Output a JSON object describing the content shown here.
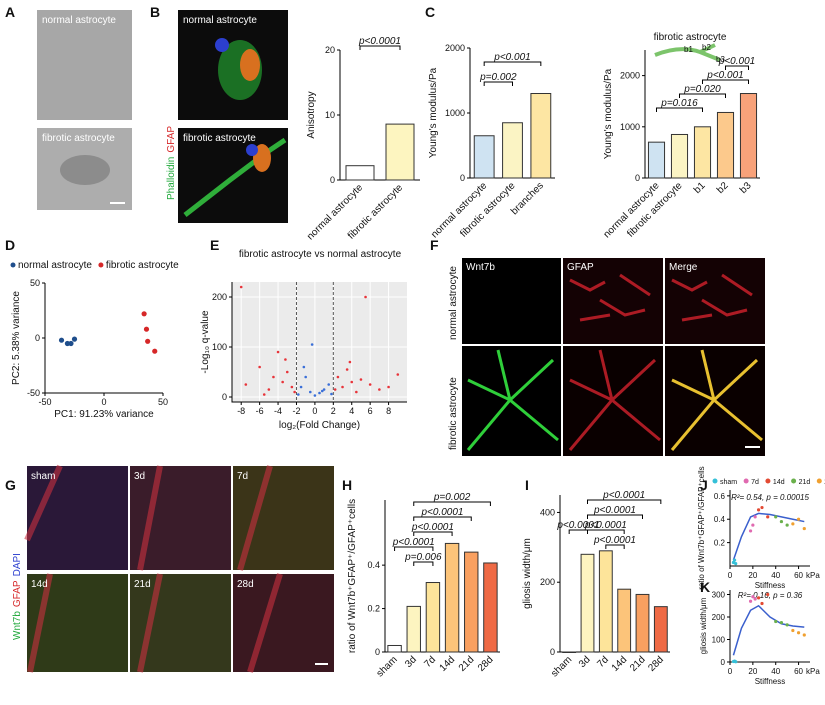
{
  "panel_letters": [
    "A",
    "B",
    "C",
    "D",
    "E",
    "F",
    "G",
    "H",
    "I",
    "J",
    "K"
  ],
  "images": {
    "A": [
      "normal astrocyte",
      "fibrotic astrocyte"
    ],
    "B": {
      "labels": [
        "normal astrocyte",
        "fibrotic astrocyte"
      ],
      "stain": [
        "Phalloidin",
        "GFAP"
      ]
    },
    "F": {
      "columns": [
        "Wnt7b",
        "GFAP",
        "Merge"
      ],
      "rows": [
        "normal astrocyte",
        "fibrotic astrocyte"
      ]
    },
    "G": {
      "labels": [
        "sham",
        "3d",
        "7d",
        "14d",
        "21d",
        "28d"
      ],
      "stain": [
        "Wnt7b",
        "GFAP",
        "DAPI"
      ]
    }
  },
  "chart_data": [
    {
      "type": "bar",
      "ylabel": "Anisotropy",
      "categories": [
        "normal astrocyte",
        "fibrotic astrocyte"
      ],
      "values": [
        2.2,
        8.6
      ],
      "colors": [
        "#ffffff",
        "#fdf5c0"
      ],
      "ylim": [
        0,
        20
      ],
      "yticks": [
        0,
        10,
        20
      ],
      "annotations": [
        "p<0.0001"
      ]
    },
    {
      "type": "bar",
      "ylabel": "Young's modulus/Pa",
      "categories": [
        "normal astrocyte",
        "fibrotic astrocyte",
        "branches"
      ],
      "values": [
        650,
        850,
        1300
      ],
      "colors": [
        "#cfe3f2",
        "#fbf4c4",
        "#fde6a3"
      ],
      "ylim": [
        0,
        2000
      ],
      "yticks": [
        0,
        1000,
        2000
      ],
      "annotations": [
        "p=0.002",
        "p<0.001"
      ]
    },
    {
      "type": "bar",
      "subtitle": "fibrotic astrocyte",
      "ylabel": "Young's modulus/Pa",
      "categories": [
        "normal astrocyte",
        "fibrotic astrocyte",
        "b1",
        "b2",
        "b3"
      ],
      "values": [
        700,
        850,
        1000,
        1280,
        1650
      ],
      "colors": [
        "#cfe3f2",
        "#fbf4c4",
        "#fde6a3",
        "#fcc98c",
        "#f8a27a"
      ],
      "ylim": [
        0,
        2500
      ],
      "yticks": [
        0,
        1000,
        2000
      ],
      "annotations": [
        "p=0.016",
        "p=0.020",
        "p<0.001",
        "p<0.001"
      ]
    },
    {
      "type": "scatter",
      "xlabel": "PC1: 91.23% variance",
      "ylabel": "PC2: 5.38% variance",
      "xlim": [
        -50,
        50
      ],
      "xticks": [
        -50,
        0,
        50
      ],
      "ylim": [
        -50,
        50
      ],
      "yticks": [
        -50,
        0,
        50
      ],
      "series": [
        {
          "name": "normal astrocyte",
          "color": "#1f4e8c",
          "x": [
            -36,
            -31,
            -28,
            -25
          ],
          "values": [
            -2,
            -5,
            -5,
            -1
          ]
        },
        {
          "name": "fibrotic astrocyte",
          "color": "#d62728",
          "x": [
            34,
            36,
            37,
            43
          ],
          "values": [
            22,
            8,
            -3,
            -12
          ]
        }
      ]
    },
    {
      "type": "scatter",
      "title": "fibrotic astrocyte vs normal astrocyte",
      "xlabel": "log₂(Fold Change)",
      "ylabel": "-Log₁₀ q-value",
      "xlim": [
        -9,
        10
      ],
      "xticks": [
        -8,
        -6,
        -4,
        -2,
        0,
        2,
        4,
        6,
        8
      ],
      "ylim": [
        -10,
        230
      ],
      "yticks": [
        0,
        100,
        200
      ],
      "grid": true,
      "thresholds": [
        -2,
        2
      ],
      "series": [
        {
          "color": "#e8343a",
          "x": [
            -8,
            -7.5,
            -6,
            -5,
            -4.5,
            -4,
            -3.5,
            -3,
            -2.5,
            -2.2,
            -3.2,
            -5.5
          ],
          "values": [
            220,
            25,
            60,
            15,
            40,
            90,
            30,
            50,
            20,
            10,
            75,
            5
          ]
        },
        {
          "color": "#3a6fd8",
          "x": [
            -1.8,
            -1.5,
            -1,
            -0.5,
            0,
            0.5,
            1,
            1.5,
            1.8,
            -1.2,
            0.8,
            -0.3
          ],
          "values": [
            5,
            20,
            40,
            10,
            3,
            8,
            15,
            25,
            6,
            60,
            12,
            105
          ]
        },
        {
          "color": "#e8343a",
          "x": [
            2.2,
            2.5,
            3,
            3.5,
            4,
            4.5,
            5,
            6,
            7,
            8,
            9,
            5.5,
            3.8
          ],
          "values": [
            15,
            40,
            20,
            55,
            30,
            10,
            35,
            25,
            15,
            20,
            45,
            200,
            70
          ]
        }
      ]
    },
    {
      "type": "bar",
      "ylabel": "ratio of Wnt7b⁺GFAP⁺/GFAP⁺cells",
      "categories": [
        "sham",
        "3d",
        "7d",
        "14d",
        "21d",
        "28d"
      ],
      "values": [
        0.03,
        0.21,
        0.32,
        0.5,
        0.46,
        0.41
      ],
      "colors": [
        "#ffffff",
        "#fdf4c0",
        "#fde49a",
        "#fcc47a",
        "#f9a060",
        "#ef6a45"
      ],
      "ylim": [
        0,
        0.7
      ],
      "yticks": [
        0,
        0.2,
        0.4
      ],
      "annotations": [
        "p=0.002",
        "p<0.0001",
        "p<0.0001",
        "p<0.0001",
        "p=0.006"
      ]
    },
    {
      "type": "bar",
      "ylabel": "gliosis width/μm",
      "categories": [
        "sham",
        "3d",
        "7d",
        "14d",
        "21d",
        "28d"
      ],
      "values": [
        0,
        280,
        290,
        180,
        165,
        130
      ],
      "colors": [
        "#ffffff",
        "#fdf4c0",
        "#fde49a",
        "#fcc47a",
        "#f9a060",
        "#ef6a45"
      ],
      "ylim": [
        0,
        450
      ],
      "yticks": [
        0,
        200,
        400
      ],
      "annotations": [
        "p<0.0001",
        "p<0.0001",
        "p<0.0001",
        "p<0.0001",
        "p<0.0001"
      ]
    },
    {
      "type": "scatter",
      "ylabel": "ratio of Wnt7b⁺GFAP⁺/GFAP⁺cells",
      "xlabel": "Stiffness",
      "xunit": "kPa",
      "note": "R²= 0.54, p = 0.00015",
      "xlim": [
        0,
        70
      ],
      "xticks": [
        0,
        20,
        40,
        60
      ],
      "ylim": [
        0,
        0.65
      ],
      "yticks": [
        0.2,
        0.4,
        0.6
      ],
      "series": [
        {
          "name": "sham",
          "color": "#35c0d8",
          "x": [
            3,
            4,
            5
          ],
          "values": [
            0.03,
            0.05,
            0.02
          ]
        },
        {
          "name": "7d",
          "color": "#e06ab0",
          "x": [
            18,
            20,
            22
          ],
          "values": [
            0.3,
            0.35,
            0.42
          ]
        },
        {
          "name": "14d",
          "color": "#e34a33",
          "x": [
            25,
            28,
            33
          ],
          "values": [
            0.48,
            0.5,
            0.42
          ]
        },
        {
          "name": "21d",
          "color": "#6ab04c",
          "x": [
            40,
            45,
            50
          ],
          "values": [
            0.42,
            0.38,
            0.35
          ]
        },
        {
          "name": "28d",
          "color": "#f0a030",
          "x": [
            55,
            60,
            65
          ],
          "values": [
            0.36,
            0.4,
            0.32
          ]
        }
      ],
      "fit": {
        "color": "#3a5fcd",
        "x": [
          3,
          10,
          18,
          25,
          35,
          45,
          55,
          65
        ],
        "values": [
          0.05,
          0.25,
          0.42,
          0.45,
          0.44,
          0.42,
          0.4,
          0.38
        ]
      }
    },
    {
      "type": "scatter",
      "ylabel": "gliosis width/μm",
      "xlabel": "Stiffness",
      "xunit": "kPa",
      "note": "R²= 0.16, p = 0.36",
      "xlim": [
        0,
        70
      ],
      "xticks": [
        0,
        20,
        40,
        60
      ],
      "ylim": [
        0,
        320
      ],
      "yticks": [
        0,
        100,
        200,
        300
      ],
      "series": [
        {
          "color": "#35c0d8",
          "x": [
            3,
            4,
            5
          ],
          "values": [
            2,
            4,
            1
          ]
        },
        {
          "color": "#e06ab0",
          "x": [
            18,
            20,
            22
          ],
          "values": [
            270,
            290,
            280
          ]
        },
        {
          "color": "#e34a33",
          "x": [
            25,
            28,
            33
          ],
          "values": [
            285,
            260,
            300
          ]
        },
        {
          "color": "#6ab04c",
          "x": [
            40,
            45,
            50
          ],
          "values": [
            180,
            175,
            165
          ]
        },
        {
          "color": "#f0a030",
          "x": [
            55,
            60,
            65
          ],
          "values": [
            140,
            130,
            120
          ]
        }
      ],
      "fit": {
        "color": "#3a5fcd",
        "x": [
          3,
          10,
          18,
          25,
          35,
          45,
          55,
          65
        ],
        "values": [
          30,
          150,
          230,
          250,
          200,
          170,
          160,
          155
        ]
      }
    }
  ]
}
